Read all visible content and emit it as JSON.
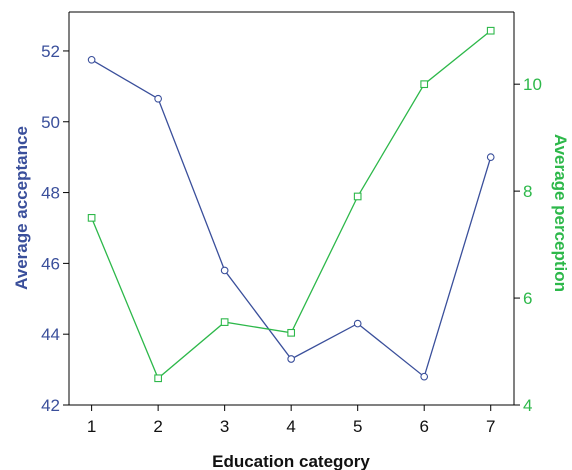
{
  "chart_data": {
    "type": "line",
    "title": "",
    "xlabel": "Education category",
    "categories": [
      "1",
      "2",
      "3",
      "4",
      "5",
      "6",
      "7"
    ],
    "x": [
      1,
      2,
      3,
      4,
      5,
      6,
      7
    ],
    "xlim": [
      0.66,
      7.35
    ],
    "y_left": {
      "label": "Average acceptance",
      "lim": [
        42,
        53.1
      ],
      "ticks": [
        42,
        44,
        46,
        48,
        50,
        52
      ]
    },
    "y_right": {
      "label": "Average perception",
      "lim": [
        4,
        11.35
      ],
      "ticks": [
        4,
        6,
        8,
        10
      ]
    },
    "series": [
      {
        "name": "Average acceptance",
        "axis": "left",
        "color": "#3a4f9b",
        "marker": "circle",
        "values": [
          51.75,
          50.65,
          45.8,
          43.3,
          44.3,
          42.8,
          49.0
        ]
      },
      {
        "name": "Average perception",
        "axis": "right",
        "color": "#2db84a",
        "marker": "square",
        "values": [
          7.5,
          4.5,
          5.55,
          5.35,
          7.9,
          10.0,
          11.0
        ]
      }
    ],
    "grid": false,
    "legend": "none"
  }
}
